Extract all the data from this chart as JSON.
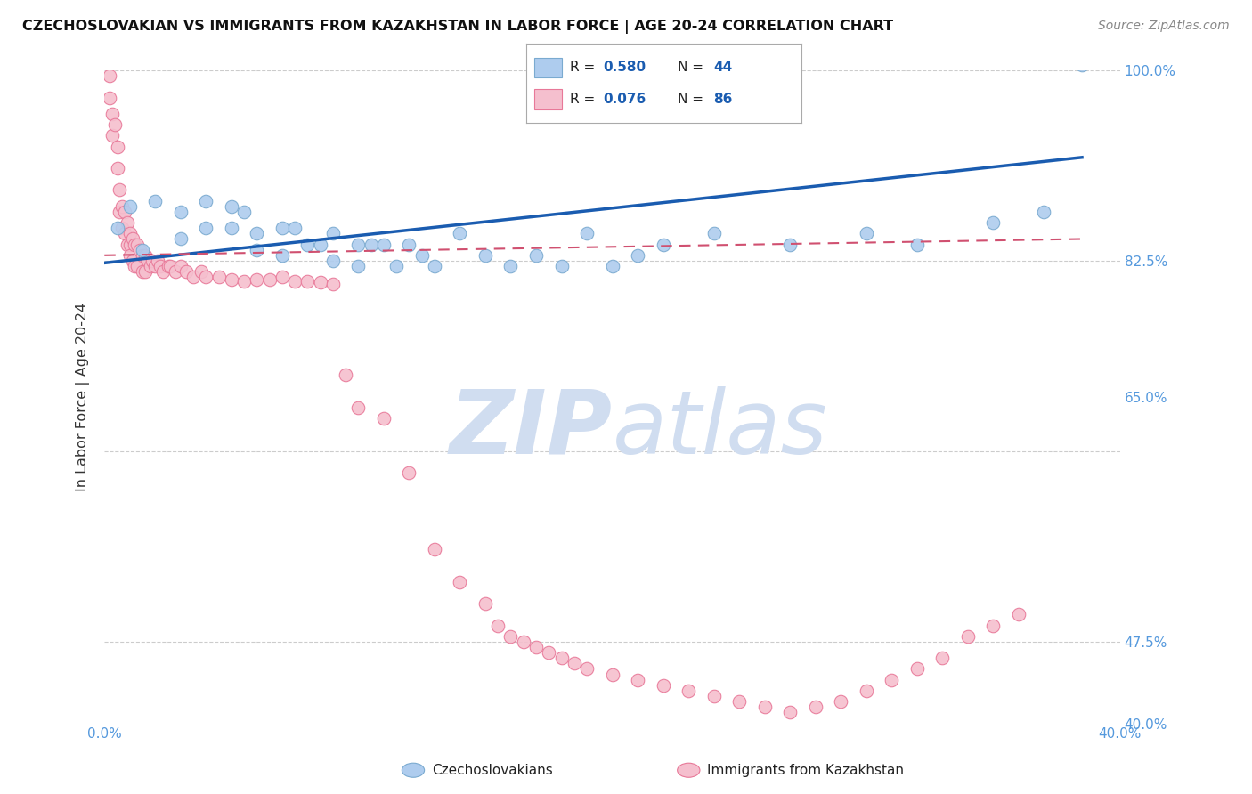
{
  "title": "CZECHOSLOVAKIAN VS IMMIGRANTS FROM KAZAKHSTAN IN LABOR FORCE | AGE 20-24 CORRELATION CHART",
  "source": "Source: ZipAtlas.com",
  "ylabel": "In Labor Force | Age 20-24",
  "xlim": [
    0.0,
    0.4
  ],
  "ylim": [
    0.4,
    1.0
  ],
  "blue_color": "#aeccee",
  "blue_edge": "#7aaad0",
  "pink_color": "#f5bfce",
  "pink_edge": "#e87898",
  "trend_blue": "#1a5cb0",
  "trend_pink": "#d05070",
  "legend_R_blue": "0.580",
  "legend_N_blue": "44",
  "legend_R_pink": "0.076",
  "legend_N_pink": "86",
  "watermark_color": "#d0ddf0",
  "tick_color": "#5599dd",
  "blue_x": [
    0.005,
    0.01,
    0.015,
    0.02,
    0.03,
    0.03,
    0.04,
    0.04,
    0.05,
    0.05,
    0.055,
    0.06,
    0.06,
    0.07,
    0.07,
    0.075,
    0.08,
    0.085,
    0.09,
    0.09,
    0.1,
    0.1,
    0.105,
    0.11,
    0.115,
    0.12,
    0.125,
    0.13,
    0.14,
    0.15,
    0.16,
    0.17,
    0.18,
    0.19,
    0.2,
    0.21,
    0.22,
    0.24,
    0.27,
    0.3,
    0.32,
    0.35,
    0.37,
    0.385
  ],
  "blue_y": [
    0.855,
    0.875,
    0.835,
    0.88,
    0.87,
    0.845,
    0.88,
    0.855,
    0.875,
    0.855,
    0.87,
    0.85,
    0.835,
    0.855,
    0.83,
    0.855,
    0.84,
    0.84,
    0.85,
    0.825,
    0.84,
    0.82,
    0.84,
    0.84,
    0.82,
    0.84,
    0.83,
    0.82,
    0.85,
    0.83,
    0.82,
    0.83,
    0.82,
    0.85,
    0.82,
    0.83,
    0.84,
    0.85,
    0.84,
    0.85,
    0.84,
    0.86,
    0.87,
    1.005
  ],
  "pink_x": [
    0.002,
    0.002,
    0.003,
    0.003,
    0.004,
    0.005,
    0.005,
    0.006,
    0.006,
    0.007,
    0.007,
    0.008,
    0.008,
    0.009,
    0.009,
    0.01,
    0.01,
    0.01,
    0.011,
    0.011,
    0.012,
    0.012,
    0.013,
    0.013,
    0.014,
    0.015,
    0.015,
    0.016,
    0.016,
    0.017,
    0.018,
    0.019,
    0.02,
    0.021,
    0.022,
    0.023,
    0.025,
    0.026,
    0.028,
    0.03,
    0.032,
    0.035,
    0.038,
    0.04,
    0.045,
    0.05,
    0.055,
    0.06,
    0.065,
    0.07,
    0.075,
    0.08,
    0.085,
    0.09,
    0.095,
    0.1,
    0.11,
    0.12,
    0.13,
    0.14,
    0.15,
    0.155,
    0.16,
    0.165,
    0.17,
    0.175,
    0.18,
    0.185,
    0.19,
    0.2,
    0.21,
    0.22,
    0.23,
    0.24,
    0.25,
    0.26,
    0.27,
    0.28,
    0.29,
    0.3,
    0.31,
    0.32,
    0.33,
    0.34,
    0.35,
    0.36
  ],
  "pink_y": [
    0.995,
    0.975,
    0.96,
    0.94,
    0.95,
    0.93,
    0.91,
    0.89,
    0.87,
    0.875,
    0.855,
    0.87,
    0.85,
    0.86,
    0.84,
    0.85,
    0.84,
    0.83,
    0.845,
    0.825,
    0.84,
    0.82,
    0.84,
    0.82,
    0.835,
    0.83,
    0.815,
    0.83,
    0.815,
    0.825,
    0.82,
    0.825,
    0.82,
    0.825,
    0.82,
    0.815,
    0.82,
    0.82,
    0.815,
    0.82,
    0.815,
    0.81,
    0.815,
    0.81,
    0.81,
    0.808,
    0.806,
    0.808,
    0.808,
    0.81,
    0.806,
    0.806,
    0.805,
    0.804,
    0.72,
    0.69,
    0.68,
    0.63,
    0.56,
    0.53,
    0.51,
    0.49,
    0.48,
    0.475,
    0.47,
    0.465,
    0.46,
    0.455,
    0.45,
    0.445,
    0.44,
    0.435,
    0.43,
    0.425,
    0.42,
    0.415,
    0.41,
    0.415,
    0.42,
    0.43,
    0.44,
    0.45,
    0.46,
    0.48,
    0.49,
    0.5
  ]
}
